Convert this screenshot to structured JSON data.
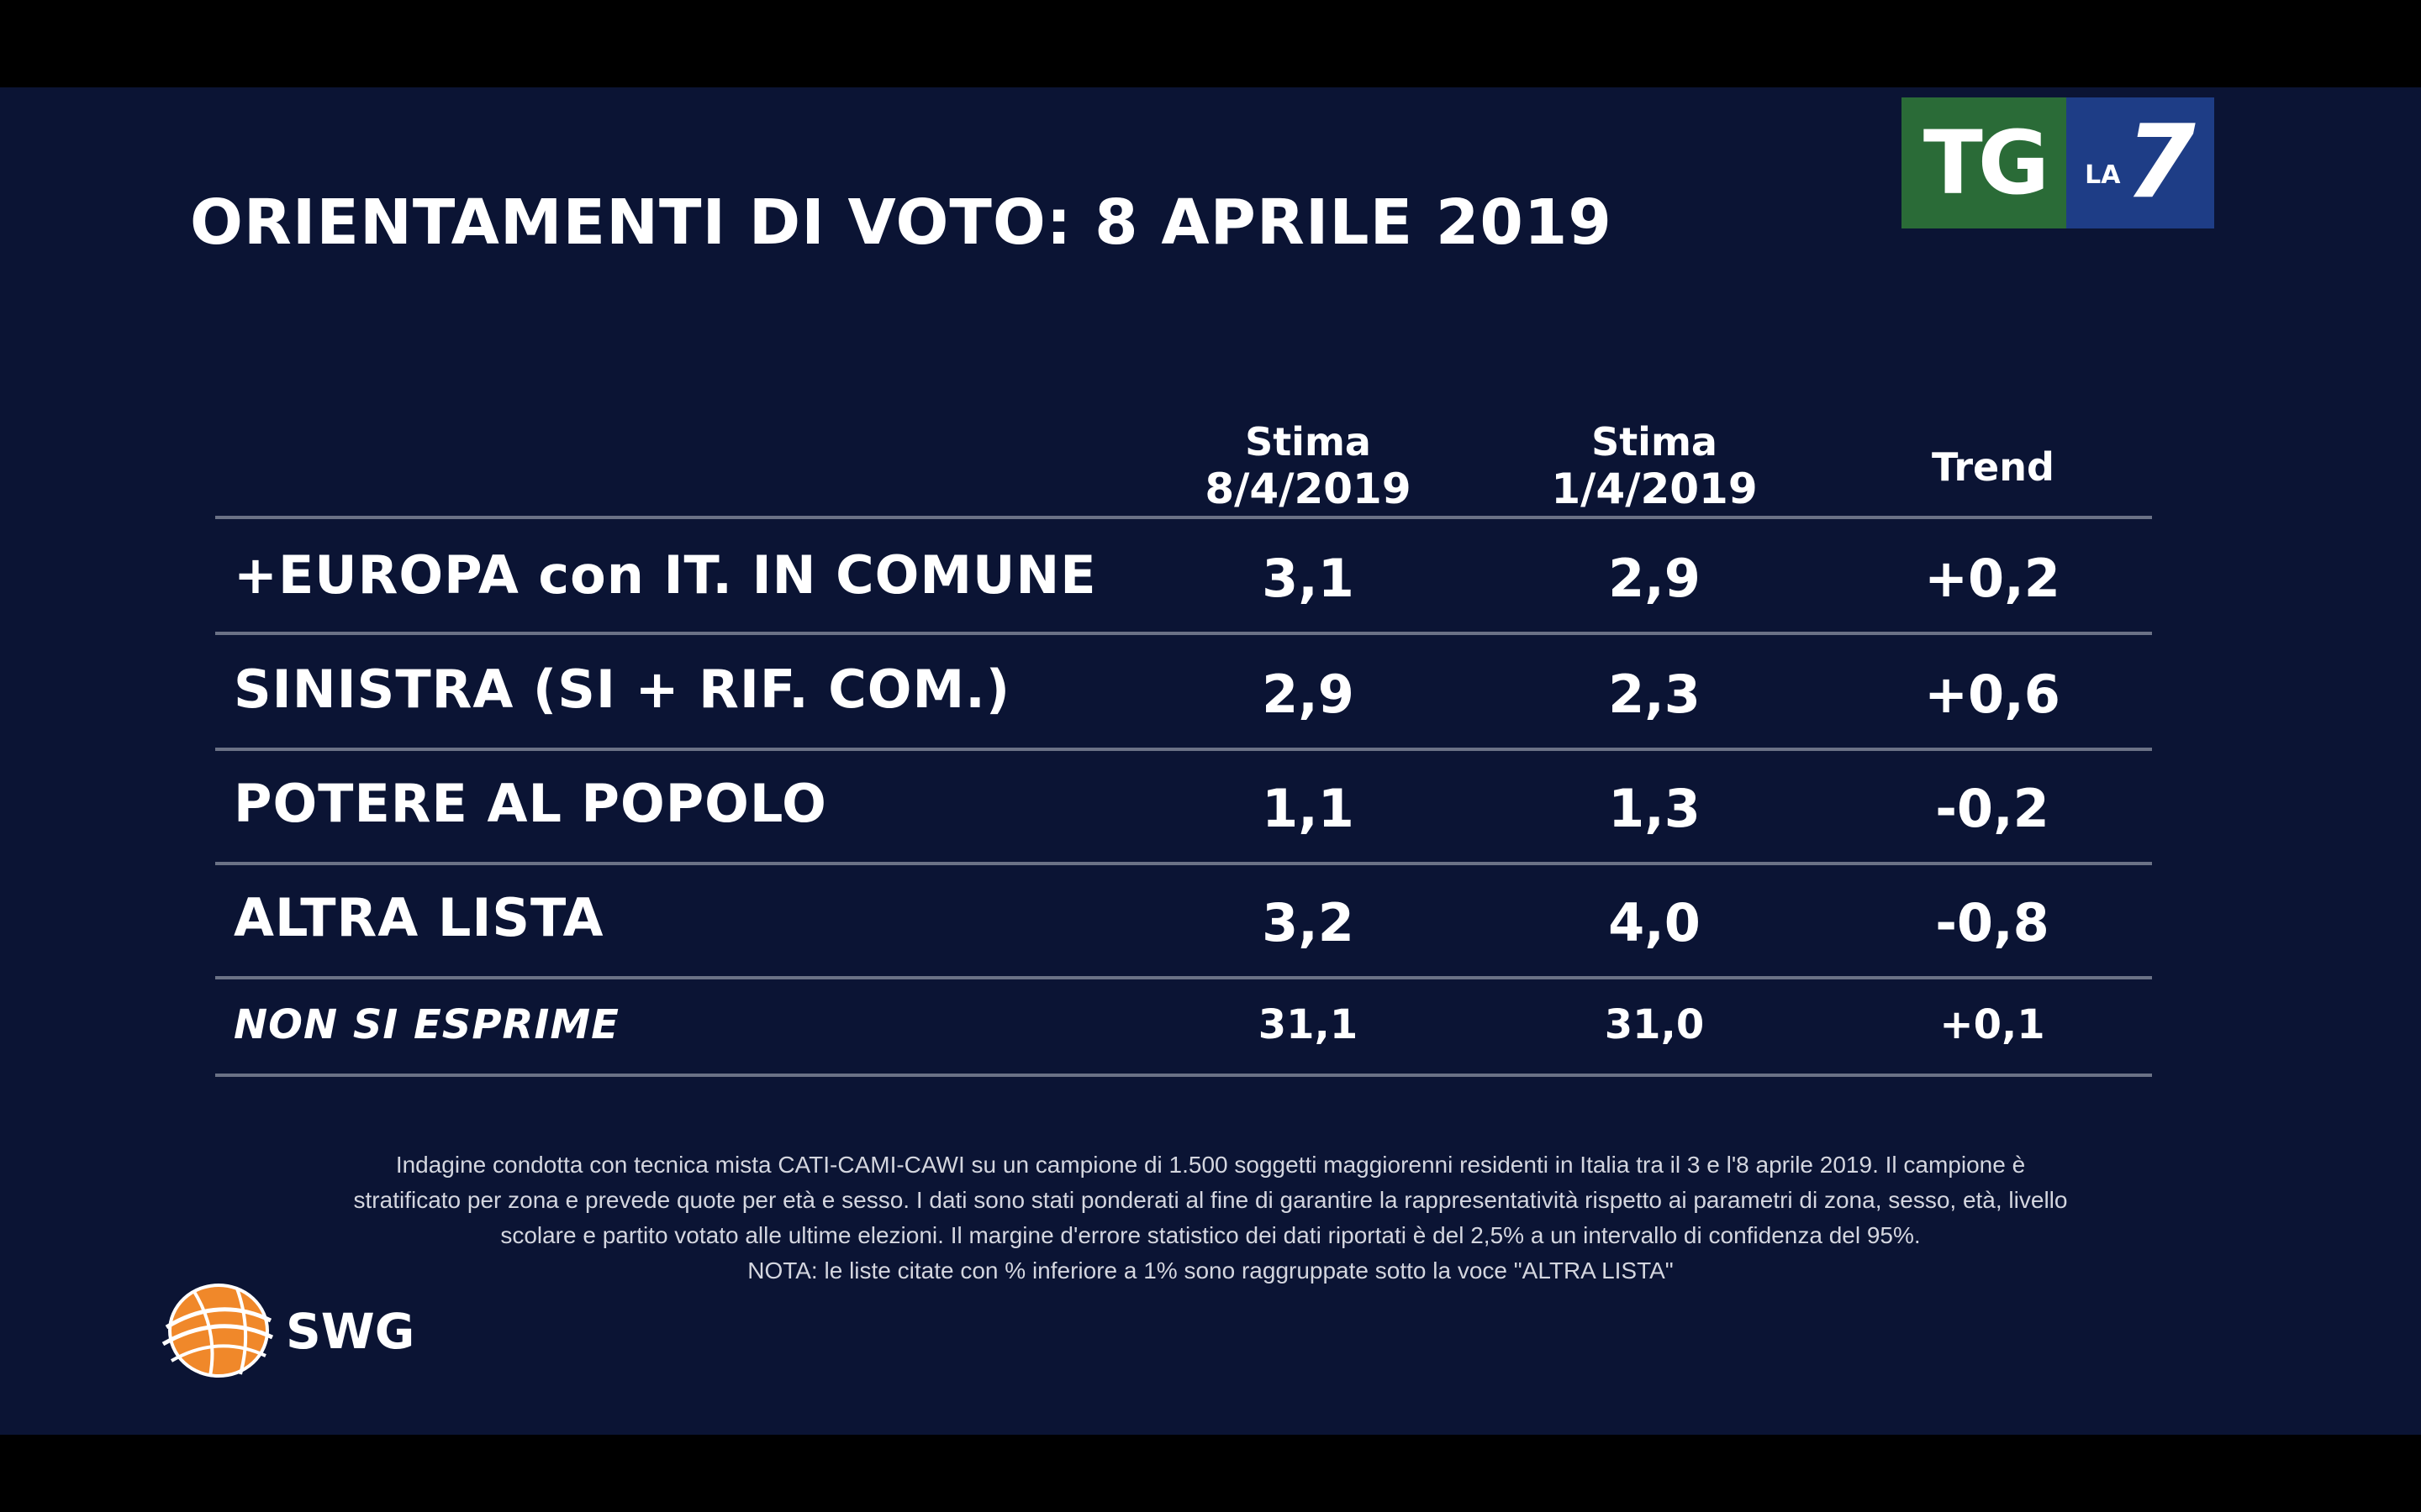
{
  "title": "ORIENTAMENTI DI VOTO: 8 APRILE 2019",
  "logo": {
    "tg": "TG",
    "la": "LA",
    "seven": "7"
  },
  "columns": [
    {
      "line1": "Stima",
      "line2": "8/4/2019"
    },
    {
      "line1": "Stima",
      "line2": "1/4/2019"
    },
    {
      "line1": "Trend",
      "line2": ""
    }
  ],
  "rows": [
    {
      "party": "+EUROPA con IT. IN COMUNE",
      "stima_8_4": "3,1",
      "stima_1_4": "2,9",
      "trend": "+0,2"
    },
    {
      "party": "SINISTRA (SI + RIF. COM.)",
      "stima_8_4": "2,9",
      "stima_1_4": "2,3",
      "trend": "+0,6"
    },
    {
      "party": "POTERE AL POPOLO",
      "stima_8_4": "1,1",
      "stima_1_4": "1,3",
      "trend": "-0,2"
    },
    {
      "party": "ALTRA LISTA",
      "stima_8_4": "3,2",
      "stima_1_4": "4,0",
      "trend": "-0,8"
    },
    {
      "party": "NON SI ESPRIME",
      "stima_8_4": "31,1",
      "stima_1_4": "31,0",
      "trend": "+0,1"
    }
  ],
  "footnote": {
    "line1": "Indagine condotta con tecnica mista CATI-CAMI-CAWI su un campione di 1.500 soggetti maggiorenni residenti in Italia tra il 3 e l'8 aprile 2019. Il campione è",
    "line2": "stratificato per zona e prevede quote per età e sesso. I dati sono stati ponderati al fine di garantire la rappresentatività rispetto ai parametri di zona, sesso, età, livello",
    "line3": "scolare e partito votato alle ultime elezioni. Il margine d'errore statistico dei dati riportati è del 2,5% a un intervallo di confidenza del 95%.",
    "note": "NOTA: le liste citate con % inferiore a 1% sono raggruppate sotto la voce \"ALTRA LISTA\""
  },
  "swg": {
    "label": "SWG"
  },
  "colors": {
    "background": "#0b1434",
    "tg_green": "#2a6b37",
    "la7_blue": "#1e3d86",
    "rule": "#6b7286",
    "globe": "#f0882a"
  }
}
